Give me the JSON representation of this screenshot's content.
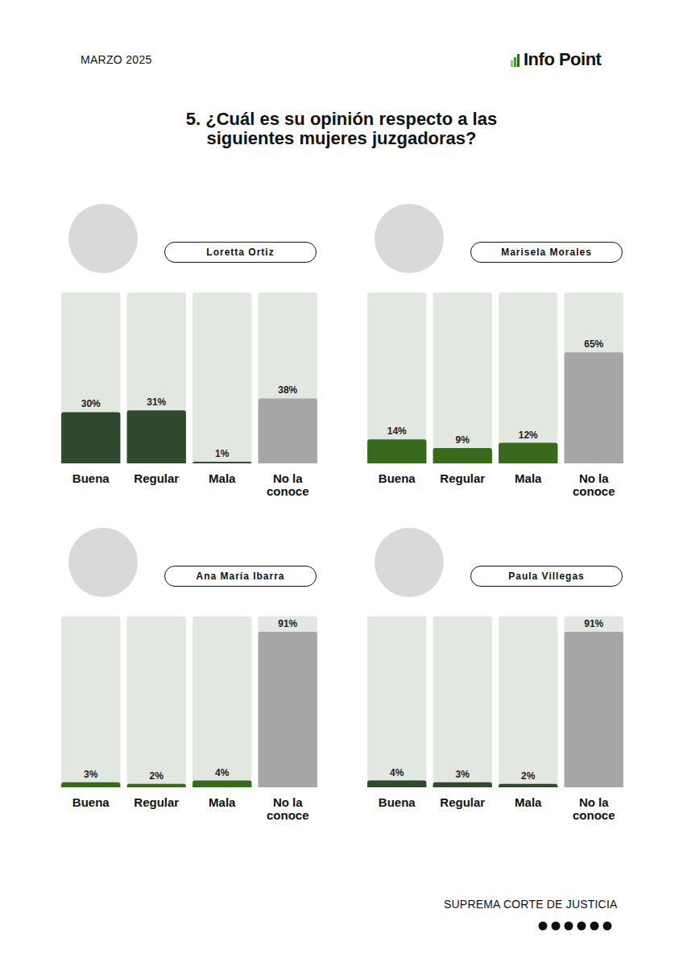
{
  "date": "MARZO 2025",
  "brand": "Info Point",
  "title": "5. ¿Cuál es su opinión respecto a las siguientes mujeres juzgadoras?",
  "footer": "SUPREMA CORTE DE JUSTICIA",
  "chart_data": [
    {
      "type": "bar",
      "title": "Loretta Ortiz",
      "categories": [
        "Buena",
        "Regular",
        "Mala",
        "No la conoce"
      ],
      "values": [
        30,
        31,
        1,
        38
      ],
      "value_labels": [
        "30%",
        "31%",
        "1%",
        "38%"
      ],
      "colors": [
        "#2f4a2c",
        "#2f4a2c",
        "#2f4a2c",
        "#a6a6a6"
      ],
      "ylim": [
        0,
        100
      ],
      "data_labels": true,
      "tick_labels": "x",
      "grid": false
    },
    {
      "type": "bar",
      "title": "Marisela Morales",
      "categories": [
        "Buena",
        "Regular",
        "Mala",
        "No la conoce"
      ],
      "values": [
        14,
        9,
        12,
        65
      ],
      "value_labels": [
        "14%",
        "9%",
        "12%",
        "65%"
      ],
      "colors": [
        "#376a1a",
        "#376a1a",
        "#376a1a",
        "#a6a6a6"
      ],
      "ylim": [
        0,
        100
      ],
      "data_labels": true,
      "tick_labels": "x",
      "grid": false
    },
    {
      "type": "bar",
      "title": "Ana María Ibarra",
      "categories": [
        "Buena",
        "Regular",
        "Mala",
        "No la conoce"
      ],
      "values": [
        3,
        2,
        4,
        91
      ],
      "value_labels": [
        "3%",
        "2%",
        "4%",
        "91%"
      ],
      "colors": [
        "#376a1a",
        "#376a1a",
        "#376a1a",
        "#a6a6a6"
      ],
      "ylim": [
        0,
        100
      ],
      "data_labels": true,
      "tick_labels": "x",
      "grid": false
    },
    {
      "type": "bar",
      "title": "Paula Villegas",
      "categories": [
        "Buena",
        "Regular",
        "Mala",
        "No la conoce"
      ],
      "values": [
        4,
        3,
        2,
        91
      ],
      "value_labels": [
        "4%",
        "3%",
        "2%",
        "91%"
      ],
      "colors": [
        "#2f4a2c",
        "#2f4a2c",
        "#2f4a2c",
        "#a6a6a6"
      ],
      "ylim": [
        0,
        100
      ],
      "data_labels": true,
      "tick_labels": "x",
      "grid": false
    }
  ]
}
